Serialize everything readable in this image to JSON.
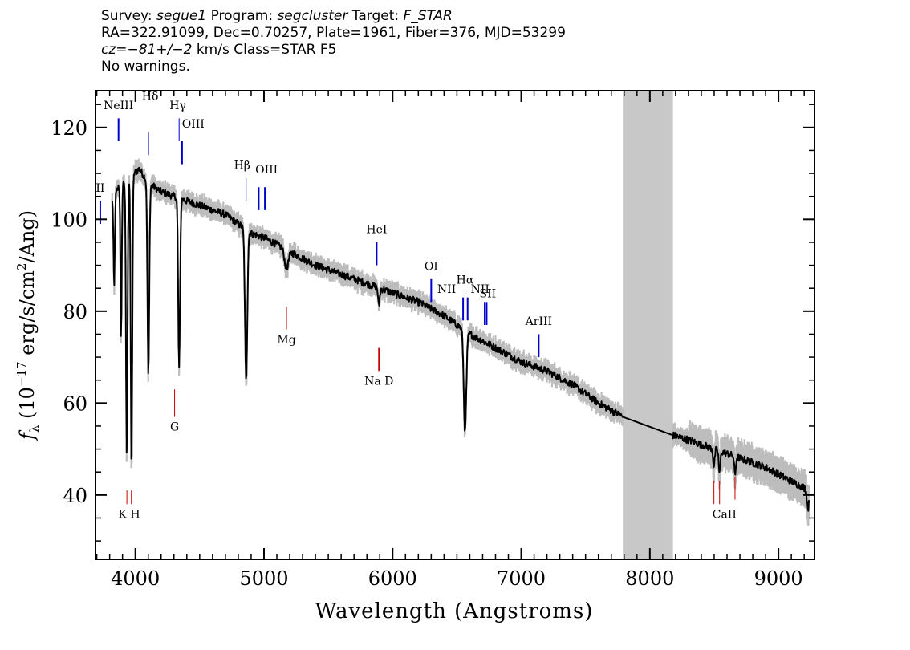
{
  "header": {
    "line1": [
      {
        "t": "Survey: ",
        "i": false
      },
      {
        "t": "segue1",
        "i": true
      },
      {
        "t": " Program: ",
        "i": false
      },
      {
        "t": "segcluster",
        "i": true
      },
      {
        "t": " Target: ",
        "i": false
      },
      {
        "t": "F_STAR",
        "i": true
      }
    ],
    "line2": "RA=322.91099, Dec=0.70257, Plate=1961, Fiber=376, MJD=53299",
    "line3": [
      {
        "t": "cz=−81+/−2",
        "i": true
      },
      {
        "t": " km/s Class=STAR F5",
        "i": false
      }
    ],
    "line4": "No warnings."
  },
  "chart_data": {
    "type": "line",
    "xlabel": "Wavelength (Angstroms)",
    "ylabel": "f_λ (10^-17 erg/s/cm^2/Ang)",
    "ylabel_parts": {
      "f": "f",
      "sub": "λ",
      "pre": " (10",
      "exp1": "−17",
      "mid": " erg/s/cm",
      "exp2": "2",
      "post": "/Ang)"
    },
    "xlim": [
      3690,
      9280
    ],
    "ylim": [
      26,
      128
    ],
    "xticks": [
      4000,
      5000,
      6000,
      7000,
      8000,
      9000
    ],
    "xtick_labels": [
      "4000",
      "5000",
      "6000",
      "7000",
      "8000",
      "9000"
    ],
    "yticks": [
      40,
      60,
      80,
      100,
      120
    ],
    "ytick_labels": [
      "40",
      "60",
      "80",
      "100",
      "120"
    ],
    "grid": false,
    "masked_region": [
      7790,
      8180
    ],
    "continuum": [
      [
        3820,
        104
      ],
      [
        3870,
        107
      ],
      [
        3950,
        109
      ],
      [
        4030,
        111
      ],
      [
        4100,
        108
      ],
      [
        4200,
        106
      ],
      [
        4300,
        105
      ],
      [
        4400,
        104
      ],
      [
        4500,
        103
      ],
      [
        4700,
        101
      ],
      [
        4900,
        97
      ],
      [
        5000,
        96
      ],
      [
        5200,
        93
      ],
      [
        5400,
        90
      ],
      [
        5600,
        88
      ],
      [
        5800,
        86
      ],
      [
        6000,
        84
      ],
      [
        6200,
        82
      ],
      [
        6400,
        79
      ],
      [
        6600,
        75
      ],
      [
        6800,
        72
      ],
      [
        7000,
        69
      ],
      [
        7200,
        67
      ],
      [
        7400,
        64
      ],
      [
        7600,
        60
      ],
      [
        7790,
        57
      ],
      [
        8180,
        53
      ],
      [
        8300,
        52
      ],
      [
        8500,
        50
      ],
      [
        8700,
        48
      ],
      [
        8900,
        46
      ],
      [
        9100,
        43
      ],
      [
        9240,
        41
      ]
    ],
    "absorption_features": [
      {
        "x": 3835,
        "depth": 20,
        "width": 5
      },
      {
        "x": 3889,
        "depth": 34,
        "width": 5
      },
      {
        "x": 3933,
        "depth": 60,
        "width": 6
      },
      {
        "x": 3970,
        "depth": 65,
        "width": 6
      },
      {
        "x": 4101,
        "depth": 42,
        "width": 7
      },
      {
        "x": 4340,
        "depth": 37,
        "width": 7
      },
      {
        "x": 4861,
        "depth": 33,
        "width": 9
      },
      {
        "x": 5175,
        "depth": 4,
        "width": 15
      },
      {
        "x": 5893,
        "depth": 4,
        "width": 6
      },
      {
        "x": 6563,
        "depth": 22,
        "width": 10
      },
      {
        "x": 8498,
        "depth": 4,
        "width": 6
      },
      {
        "x": 8542,
        "depth": 5,
        "width": 6
      },
      {
        "x": 8662,
        "depth": 4,
        "width": 6
      },
      {
        "x": 9230,
        "depth": 4,
        "width": 8
      }
    ],
    "emission_lines": [
      {
        "label": "NeIII",
        "x": 3869,
        "y1": 117,
        "y2": 122,
        "lx": 3869,
        "ly": 124
      },
      {
        "label": "Hδ",
        "x": 4102,
        "y1": 114,
        "y2": 119,
        "lx": 4115,
        "ly": 126
      },
      {
        "label": "Hγ",
        "x": 4340,
        "y1": 117,
        "y2": 122,
        "lx": 4330,
        "ly": 124
      },
      {
        "label": "OIII",
        "x": 4363,
        "y1": 112,
        "y2": 117,
        "lx": 4450,
        "ly": 120
      },
      {
        "label": "Hβ",
        "x": 4861,
        "y1": 104,
        "y2": 109,
        "lx": 4830,
        "ly": 111
      },
      {
        "label": "OIII",
        "x": 4959,
        "y1": 102,
        "y2": 107,
        "lx": 5020,
        "ly": 110
      },
      {
        "label": "OIII",
        "x": 5007,
        "y1": 102,
        "y2": 107,
        "lx": 5020,
        "ly": 110
      },
      {
        "label": "II",
        "x": 3727,
        "y1": 99,
        "y2": 104,
        "lx": 3727,
        "ly": 106
      },
      {
        "label": "HeI",
        "x": 5876,
        "y1": 90,
        "y2": 95,
        "lx": 5876,
        "ly": 97
      },
      {
        "label": "OI",
        "x": 6300,
        "y1": 82,
        "y2": 87,
        "lx": 6300,
        "ly": 89
      },
      {
        "label": "NII",
        "x": 6548,
        "y1": 78,
        "y2": 83,
        "lx": 6420,
        "ly": 84
      },
      {
        "label": "Hα",
        "x": 6563,
        "y1": 79,
        "y2": 84,
        "lx": 6563,
        "ly": 86
      },
      {
        "label": "NII",
        "x": 6583,
        "y1": 78,
        "y2": 83,
        "lx": 6680,
        "ly": 84
      },
      {
        "label": "SII",
        "x": 6716,
        "y1": 77,
        "y2": 82,
        "lx": 6740,
        "ly": 83
      },
      {
        "label": "SII",
        "x": 6731,
        "y1": 77,
        "y2": 82,
        "lx": 6740,
        "ly": 83
      },
      {
        "label": "ArIII",
        "x": 7136,
        "y1": 70,
        "y2": 75,
        "lx": 7136,
        "ly": 77
      }
    ],
    "absorption_lines": [
      {
        "label": "K",
        "x": 3934,
        "y1": 38,
        "y2": 41
      },
      {
        "label": "H",
        "x": 3969,
        "y1": 38,
        "y2": 41
      },
      {
        "label": "G",
        "x": 4305,
        "y1": 57,
        "y2": 63
      },
      {
        "label": "Mg",
        "x": 5175,
        "y1": 76,
        "y2": 81
      },
      {
        "label": "Na D",
        "x": 5894,
        "y1": 67,
        "y2": 72
      },
      {
        "label": "CaII",
        "x": 8498,
        "y1": 38,
        "y2": 43
      },
      {
        "label": "CaII",
        "x": 8542,
        "y1": 38,
        "y2": 43
      },
      {
        "label": "CaII",
        "x": 8662,
        "y1": 39,
        "y2": 44
      }
    ],
    "absorption_text": [
      {
        "label": "K H",
        "x": 3952,
        "y": 35
      },
      {
        "label": "G",
        "x": 4305,
        "y": 54
      },
      {
        "label": "Mg",
        "x": 5175,
        "y": 73
      },
      {
        "label": "Na D",
        "x": 5894,
        "y": 64
      },
      {
        "label": "CaII",
        "x": 8580,
        "y": 35
      }
    ],
    "colors": {
      "spectrum": "#000000",
      "noise": "#bdbdbd",
      "mask": "#c8c8c8",
      "emission": "#0000cc",
      "absorption": "#cc0000"
    }
  }
}
